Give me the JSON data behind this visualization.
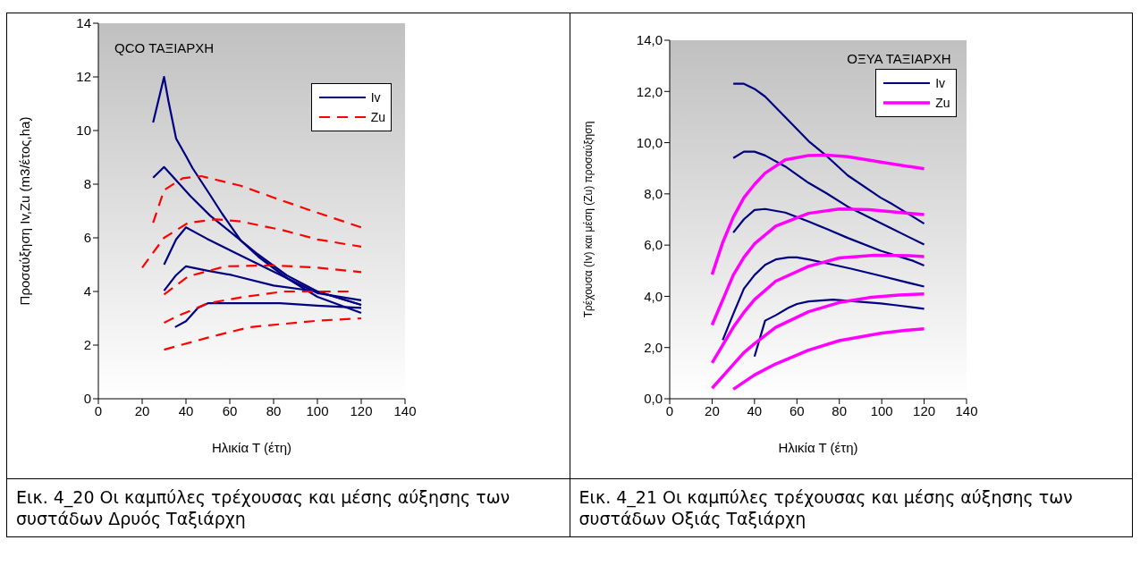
{
  "chart_data": [
    {
      "type": "line",
      "title": "QCO ΤΑΞΙΑΡΧΗ",
      "xlabel": "Ηλικία Τ (έτη)",
      "ylabel": "Προσαύξηση Iv,Zu (m3/έτος,ha)",
      "xlim": [
        0,
        140
      ],
      "xticks": [
        0,
        20,
        40,
        60,
        80,
        100,
        120,
        140
      ],
      "ylim": [
        0,
        14
      ],
      "yticks": [
        0,
        2,
        4,
        6,
        8,
        10,
        12,
        14
      ],
      "legend": "top right",
      "annotations": [
        "Εικ. 4_20 Οι καμπύλες τρέχουσας και μέσης αύξησης των συστάδων Δρυός Ταξιάρχη"
      ],
      "series": [
        {
          "name": "Iv",
          "color": "#000080",
          "line_style": "solid",
          "x": [
            25,
            30,
            32,
            35.5,
            40,
            43,
            51,
            56.5,
            65,
            73,
            86,
            100,
            120
          ],
          "values": [
            10.3,
            12,
            11.1,
            9.7,
            9.05,
            8.6,
            7.6,
            6.9,
            5.9,
            5.3,
            4.5,
            3.8,
            3.2
          ]
        },
        {
          "color": "#000080",
          "line_style": "solid",
          "x": [
            25,
            30,
            42,
            51,
            61,
            72,
            86,
            100,
            120
          ],
          "values": [
            8.24,
            8.64,
            7.56,
            6.83,
            6.17,
            5.44,
            4.6,
            4.0,
            3.5
          ]
        },
        {
          "color": "#000080",
          "line_style": "solid",
          "x": [
            30,
            35.5,
            40,
            49.5,
            61,
            72,
            86,
            100,
            120
          ],
          "values": [
            5.0,
            5.94,
            6.39,
            5.97,
            5.5,
            5.06,
            4.5,
            3.94,
            3.67
          ]
        },
        {
          "color": "#000080",
          "line_style": "solid",
          "x": [
            30,
            35.5,
            40,
            49.5,
            61,
            80,
            100,
            120
          ],
          "values": [
            4.03,
            4.61,
            4.94,
            4.78,
            4.61,
            4.22,
            4.0,
            3.5
          ]
        },
        {
          "color": "#000080",
          "line_style": "solid",
          "x": [
            35,
            40,
            45.5,
            50,
            83,
            100,
            120
          ],
          "values": [
            2.67,
            2.89,
            3.39,
            3.56,
            3.56,
            3.47,
            3.39
          ]
        },
        {
          "name": "Zu",
          "color": "#ff0000",
          "line_style": "dashed",
          "x": [
            25,
            30,
            38.5,
            47,
            65,
            80,
            95.5,
            120
          ],
          "values": [
            6.56,
            7.78,
            8.22,
            8.3,
            7.94,
            7.5,
            7.06,
            6.39
          ]
        },
        {
          "color": "#ff0000",
          "line_style": "dashed",
          "x": [
            20,
            30,
            41,
            54,
            65,
            84.5,
            100,
            120
          ],
          "values": [
            4.89,
            6.0,
            6.56,
            6.69,
            6.61,
            6.28,
            5.94,
            5.67
          ]
        },
        {
          "color": "#ff0000",
          "line_style": "dashed",
          "x": [
            30,
            41,
            58,
            80,
            100,
            120
          ],
          "values": [
            3.89,
            4.56,
            4.94,
            4.97,
            4.89,
            4.72
          ]
        },
        {
          "color": "#ff0000",
          "line_style": "dashed",
          "x": [
            30,
            35.5,
            50,
            65,
            84.5,
            115
          ],
          "values": [
            2.83,
            3.06,
            3.56,
            3.78,
            4.0,
            4.0
          ]
        },
        {
          "color": "#ff0000",
          "line_style": "dashed",
          "x": [
            30,
            50,
            69,
            100,
            120
          ],
          "values": [
            1.83,
            2.28,
            2.67,
            2.91,
            3.0
          ]
        }
      ]
    },
    {
      "type": "line",
      "title": "ΟΞΥΑ ΤΑΞΙΑΡΧΗ",
      "xlabel": "Ηλικία Τ (έτη)",
      "ylabel": "Τρέχουσα (Iv) και μέση (Zu) προσαύξηση",
      "xlim": [
        0,
        140
      ],
      "xticks": [
        0,
        20,
        40,
        60,
        80,
        100,
        120,
        140
      ],
      "ylim": [
        0,
        14
      ],
      "yticks": [
        {
          "value": 0,
          "label": "0,0"
        },
        {
          "value": 2,
          "label": "2,0"
        },
        {
          "value": 4,
          "label": "4,0"
        },
        {
          "value": 6,
          "label": "6,0"
        },
        {
          "value": 8,
          "label": "8,0"
        },
        {
          "value": 10,
          "label": "10,0"
        },
        {
          "value": 12,
          "label": "12,0"
        },
        {
          "value": 14,
          "label": "14,0"
        }
      ],
      "legend": "top right",
      "annotations": [
        "Εικ. 4_21 Οι καμπύλες τρέχουσας και μέσης αύξησης των συστάδων Οξιάς Ταξιάρχη"
      ],
      "series": [
        {
          "name": "Iv",
          "color": "#000080",
          "line_style": "solid",
          "x": [
            30,
            35,
            40,
            45,
            54.5,
            65.5,
            74,
            84,
            99.5,
            105,
            120
          ],
          "values": [
            12.3,
            12.3,
            12.1,
            11.8,
            11.0,
            10.06,
            9.48,
            8.72,
            7.85,
            7.6,
            6.84
          ]
        },
        {
          "color": "#000080",
          "line_style": "solid",
          "x": [
            30,
            35,
            40,
            45,
            54.5,
            65.5,
            74,
            84,
            99.5,
            120
          ],
          "values": [
            9.4,
            9.65,
            9.65,
            9.5,
            9.07,
            8.43,
            8.02,
            7.5,
            6.86,
            6.02
          ]
        },
        {
          "color": "#000080",
          "line_style": "solid",
          "x": [
            30,
            35,
            40,
            45,
            54.5,
            65.5,
            74,
            84,
            99.5,
            115,
            120
          ],
          "values": [
            6.49,
            7.01,
            7.37,
            7.41,
            7.27,
            6.92,
            6.63,
            6.28,
            5.78,
            5.38,
            5.2
          ]
        },
        {
          "color": "#000080",
          "line_style": "solid",
          "x": [
            25,
            30,
            35,
            40,
            45,
            50,
            56,
            60,
            65.5,
            74,
            85.5,
            99.5,
            115,
            120
          ],
          "values": [
            2.29,
            3.31,
            4.3,
            4.83,
            5.23,
            5.44,
            5.52,
            5.52,
            5.44,
            5.29,
            5.08,
            4.8,
            4.48,
            4.38
          ]
        },
        {
          "color": "#000080",
          "line_style": "solid",
          "x": [
            40,
            45,
            50,
            56,
            60,
            65.5,
            77,
            99.5,
            108,
            120
          ],
          "values": [
            1.65,
            3.05,
            3.26,
            3.55,
            3.7,
            3.8,
            3.87,
            3.72,
            3.64,
            3.51
          ]
        },
        {
          "name": "Zu",
          "color": "#ff00ff",
          "line_style": "solid",
          "x": [
            20,
            25,
            30,
            35,
            40,
            45,
            54.5,
            65.5,
            74,
            84,
            99.5,
            120
          ],
          "values": [
            4.85,
            6.1,
            7.09,
            7.85,
            8.37,
            8.81,
            9.33,
            9.5,
            9.51,
            9.45,
            9.24,
            8.98
          ]
        },
        {
          "color": "#ff00ff",
          "line_style": "solid",
          "x": [
            20,
            30,
            35,
            40,
            50,
            65.5,
            80,
            94,
            120
          ],
          "values": [
            2.88,
            4.83,
            5.52,
            6.05,
            6.74,
            7.24,
            7.41,
            7.38,
            7.19
          ]
        },
        {
          "color": "#ff00ff",
          "line_style": "solid",
          "x": [
            20,
            30,
            35,
            40,
            50,
            65.5,
            80,
            96.5,
            115,
            120
          ],
          "values": [
            1.4,
            2.79,
            3.37,
            3.87,
            4.59,
            5.17,
            5.5,
            5.6,
            5.58,
            5.55
          ]
        },
        {
          "color": "#ff00ff",
          "line_style": "solid",
          "x": [
            20,
            30,
            35,
            40,
            50,
            65.5,
            80,
            94,
            108,
            120
          ],
          "values": [
            0.41,
            1.34,
            1.8,
            2.15,
            2.79,
            3.4,
            3.76,
            3.95,
            4.05,
            4.09
          ]
        },
        {
          "color": "#ff00ff",
          "line_style": "solid",
          "x": [
            30,
            40,
            50,
            65.5,
            80,
            99.5,
            111,
            120
          ],
          "values": [
            0.37,
            0.93,
            1.36,
            1.9,
            2.27,
            2.56,
            2.67,
            2.73
          ]
        }
      ]
    }
  ]
}
